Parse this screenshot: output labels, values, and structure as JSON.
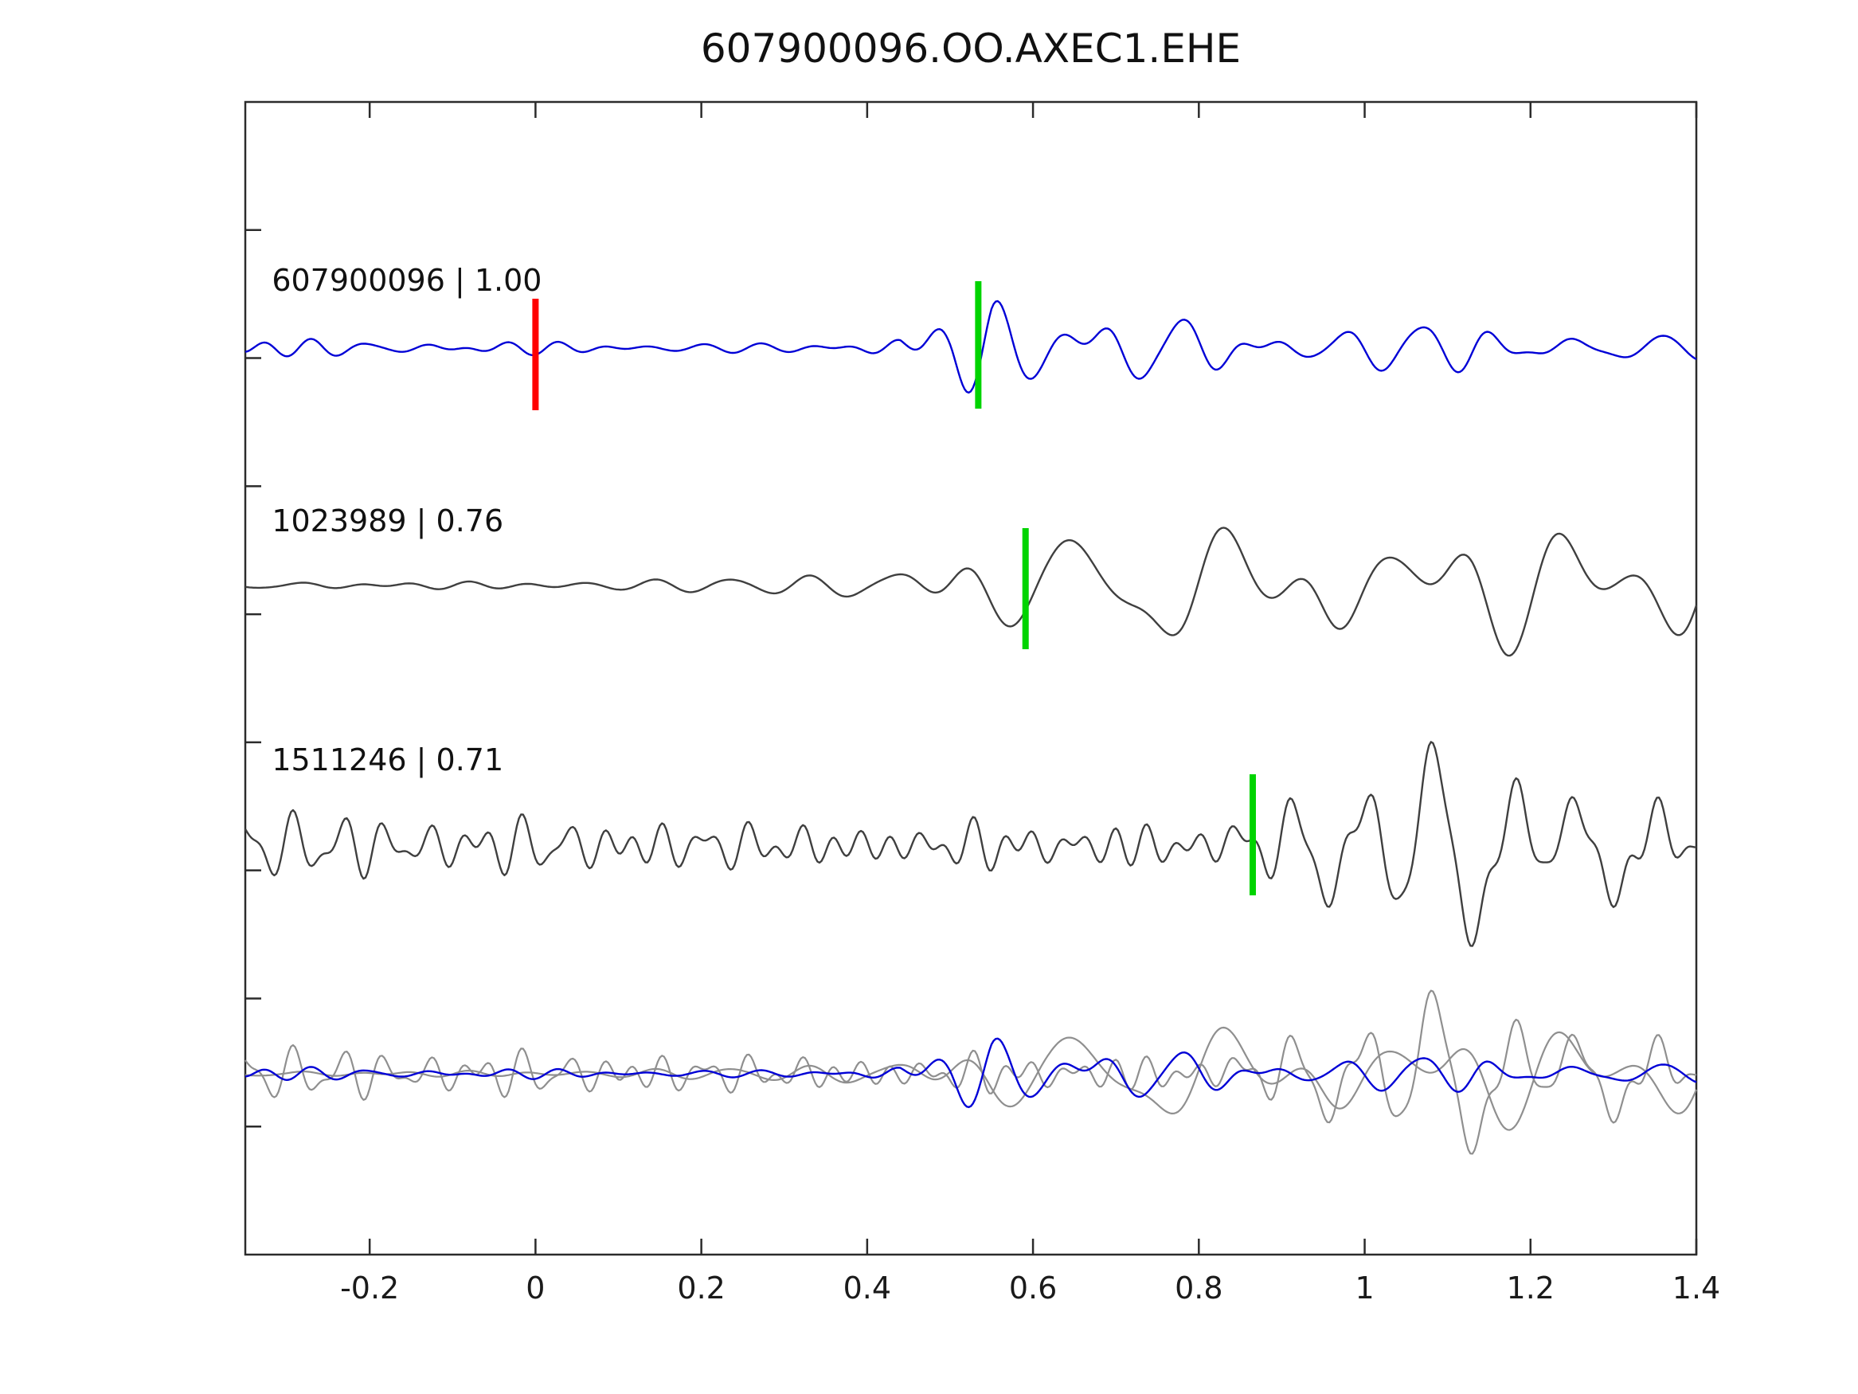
{
  "title": "607900096.OO.AXEC1.EHE",
  "chart_data": {
    "type": "line",
    "kind": "seismic-waveform-template-match",
    "grid": false,
    "x_range": [
      -0.35,
      1.4
    ],
    "x_ticks": [
      -0.2,
      0,
      0.2,
      0.4,
      0.6,
      0.8,
      1,
      1.2,
      1.4
    ],
    "x_tick_labels": [
      "-0.2",
      "0",
      "0.2",
      "0.4",
      "0.6",
      "0.8",
      "1",
      "1.2",
      "1.4"
    ],
    "colors": {
      "template_trace": "#0000d6",
      "detection_trace": "#3f3f3f",
      "overlay_gray": "#8f8f8f",
      "origin_marker": "#ff0000",
      "pick_marker": "#00d400",
      "axis": "#2b2b2b"
    },
    "traces": [
      {
        "id": "607900096",
        "label": "607900096 | 1.00",
        "correlation": "1.00",
        "color": "#0000d6",
        "seed": 101,
        "noise": {
          "f0": 19,
          "nf": 8,
          "env": [
            [
              -0.35,
              4
            ],
            [
              1.4,
              4
            ]
          ]
        },
        "event": {
          "f0": 11,
          "nf": 6,
          "env": [
            [
              0.44,
              0
            ],
            [
              0.5,
              18
            ],
            [
              0.55,
              55
            ],
            [
              0.6,
              50
            ],
            [
              0.67,
              40
            ],
            [
              0.75,
              22
            ],
            [
              0.9,
              10
            ],
            [
              1.1,
              9
            ],
            [
              1.4,
              8
            ]
          ]
        }
      },
      {
        "id": "1023989",
        "label": "1023989 | 0.76",
        "correlation": "0.76",
        "color": "#3f3f3f",
        "seed": 202,
        "noise": {
          "f0": 15,
          "nf": 8,
          "env": [
            [
              -0.35,
              3
            ],
            [
              0.1,
              4
            ],
            [
              0.4,
              6
            ],
            [
              0.6,
              6
            ]
          ]
        },
        "event": {
          "f0": 7.5,
          "nf": 6,
          "env": [
            [
              0.35,
              0
            ],
            [
              0.5,
              8
            ],
            [
              0.62,
              22
            ],
            [
              0.72,
              42
            ],
            [
              0.85,
              46
            ],
            [
              1.4,
              44
            ]
          ]
        }
      },
      {
        "id": "1511246",
        "label": "1511246 | 0.71",
        "correlation": "0.71",
        "color": "#3f3f3f",
        "seed": 303,
        "noise": {
          "f0": 21,
          "nf": 8,
          "env": [
            [
              -0.35,
              16
            ],
            [
              1.4,
              16
            ]
          ]
        },
        "event": {
          "f0": 9,
          "nf": 6,
          "env": [
            [
              0.78,
              0
            ],
            [
              0.9,
              30
            ],
            [
              1.0,
              46
            ],
            [
              1.2,
              42
            ],
            [
              1.4,
              40
            ]
          ]
        }
      }
    ],
    "overlay": {
      "description": "all traces superimposed on bottom row",
      "scales": [
        0.75,
        0.8,
        0.8
      ],
      "gray_color": "#8f8f8f"
    },
    "markers": [
      {
        "type": "origin",
        "x": 0,
        "row": 0,
        "color": "#ff0000",
        "above": 62,
        "below": 78
      },
      {
        "type": "pick",
        "x": 0.534,
        "row": 0,
        "color": "#00d400",
        "above": 84,
        "below": 76
      },
      {
        "type": "pick",
        "x": 0.591,
        "row": 1,
        "color": "#00d400",
        "above": 72,
        "below": 80
      },
      {
        "type": "pick",
        "x": 0.865,
        "row": 2,
        "color": "#00d400",
        "above": 90,
        "below": 62
      }
    ]
  }
}
